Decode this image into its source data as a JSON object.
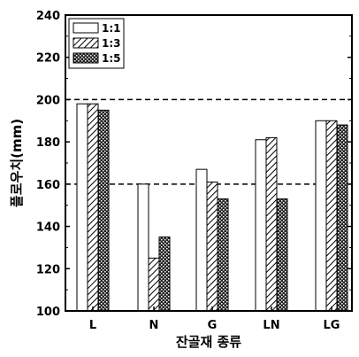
{
  "chart_data": {
    "type": "bar",
    "categories": [
      "L",
      "N",
      "G",
      "LN",
      "LG"
    ],
    "series": [
      {
        "name": "1:1",
        "values": [
          198,
          160,
          167,
          181,
          190
        ],
        "fill": "white"
      },
      {
        "name": "1:3",
        "values": [
          198,
          125,
          161,
          182,
          190
        ],
        "fill": "hatch"
      },
      {
        "name": "1:5",
        "values": [
          195,
          135,
          153,
          153,
          188
        ],
        "fill": "crosshatch"
      }
    ],
    "xlabel": "잔골재 종류",
    "ylabel": "플로우치(mm)",
    "ylim": [
      100,
      240
    ],
    "yticks": [
      100,
      120,
      140,
      160,
      180,
      200,
      220,
      240
    ],
    "reference_lines": [
      160,
      200
    ],
    "legend_position": "top-left",
    "grid": false,
    "colors": {
      "bar_outline": "#000000",
      "background": "#ffffff",
      "hatch": "#000000"
    }
  }
}
